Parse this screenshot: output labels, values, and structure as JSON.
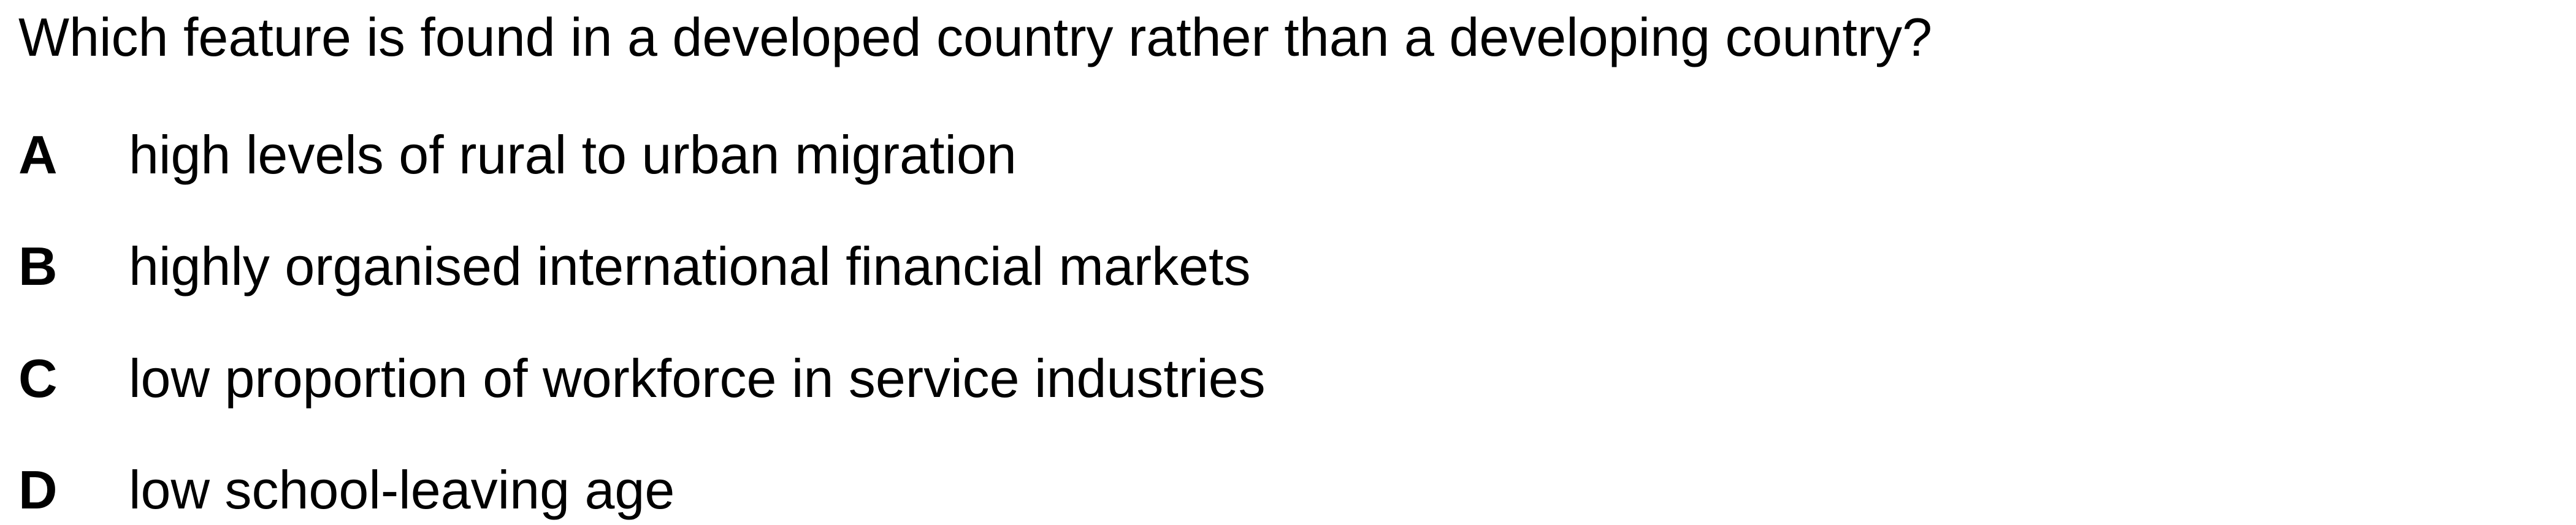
{
  "question": "Which feature is found in a developed country rather than a developing country?",
  "options": [
    {
      "letter": "A",
      "text": "high levels of rural to urban migration"
    },
    {
      "letter": "B",
      "text": "highly organised international financial markets"
    },
    {
      "letter": "C",
      "text": "low proportion of workforce in service industries"
    },
    {
      "letter": "D",
      "text": "low school-leaving age"
    }
  ]
}
